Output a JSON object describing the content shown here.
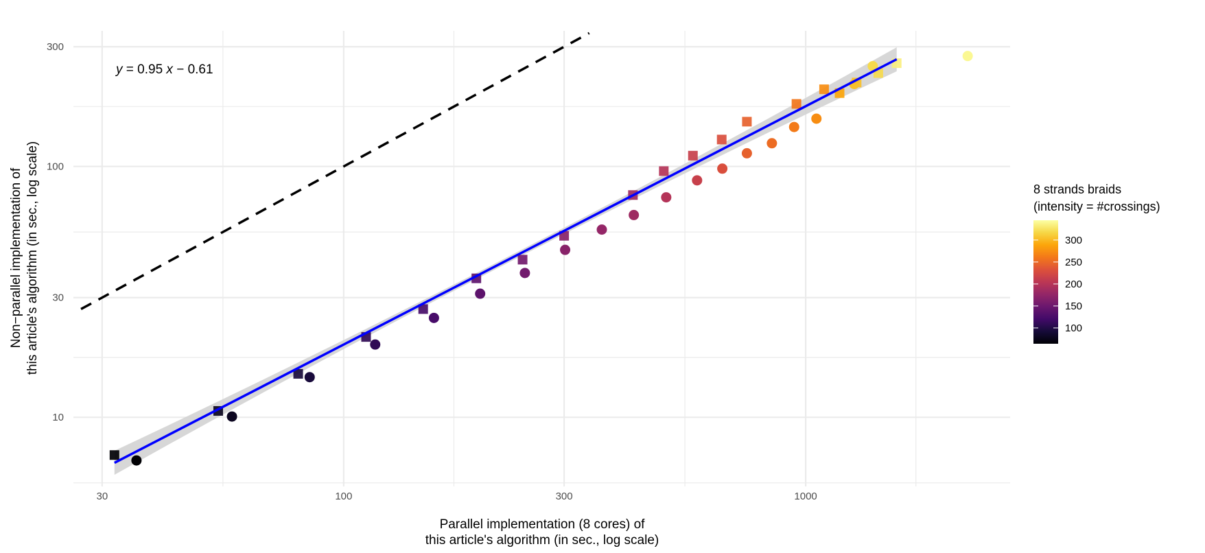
{
  "chart_data": {
    "type": "scatter",
    "title": "",
    "xlabel": [
      "Parallel implementation (8 cores) of",
      "this article's algorithm (in sec., log scale)"
    ],
    "ylabel": [
      "Non−parallel implementation of",
      "this article's algorithm (in sec., log scale)"
    ],
    "xscale": "log10",
    "yscale": "log10",
    "xlim": [
      26,
      2770
    ],
    "ylim": [
      5.3,
      347
    ],
    "xticks": [
      30,
      100,
      300,
      1000
    ],
    "xtick_labels": [
      "30",
      "100",
      "300",
      "1000"
    ],
    "yticks": [
      10,
      30,
      100,
      300
    ],
    "ytick_labels": [
      "10",
      "30",
      "100",
      "300"
    ],
    "grid": true,
    "annotation": {
      "y": "y",
      "eq": " = 0.95 ",
      "x": "x",
      "rest": " − 0.61"
    },
    "fit_line": {
      "slope": 0.95,
      "intercept": -0.61,
      "x_range": [
        31.9,
        1574
      ],
      "color": "#0000ff",
      "confidence_band": true,
      "band_color": "#d3d3d3"
    },
    "reference_line": {
      "type": "y = x",
      "style": "dashed",
      "color": "#000000",
      "x_range": [
        27,
        340
      ]
    },
    "color_legend": {
      "title": [
        "8 strands braids",
        "(intensity = #crossings)"
      ],
      "palette": "inferno",
      "limits": [
        64,
        345
      ],
      "ticks": [
        100,
        150,
        200,
        250,
        300
      ],
      "tick_labels": [
        "100",
        "150",
        "200",
        "250",
        "300"
      ],
      "placement": "right"
    },
    "series": [
      {
        "shape": "square",
        "points": [
          {
            "x": 31.9,
            "y": 7.07,
            "crossings": 64
          },
          {
            "x": 53.5,
            "y": 10.6,
            "crossings": 79
          },
          {
            "x": 79.7,
            "y": 14.9,
            "crossings": 94
          },
          {
            "x": 111.8,
            "y": 20.9,
            "crossings": 109
          },
          {
            "x": 148.6,
            "y": 27.0,
            "crossings": 124
          },
          {
            "x": 193.7,
            "y": 35.8,
            "crossings": 139
          },
          {
            "x": 243.9,
            "y": 42.5,
            "crossings": 154
          },
          {
            "x": 300,
            "y": 52.9,
            "crossings": 169
          },
          {
            "x": 422.7,
            "y": 76.9,
            "crossings": 184
          },
          {
            "x": 493,
            "y": 95.8,
            "crossings": 199
          },
          {
            "x": 570,
            "y": 110.4,
            "crossings": 214
          },
          {
            "x": 658,
            "y": 128,
            "crossings": 229
          },
          {
            "x": 746,
            "y": 150.8,
            "crossings": 244
          },
          {
            "x": 955,
            "y": 177.5,
            "crossings": 259
          },
          {
            "x": 1096,
            "y": 203,
            "crossings": 274
          },
          {
            "x": 1184,
            "y": 196,
            "crossings": 289
          },
          {
            "x": 1289,
            "y": 216,
            "crossings": 304
          },
          {
            "x": 1436,
            "y": 235.6,
            "crossings": 319
          },
          {
            "x": 1574,
            "y": 258,
            "crossings": 334
          }
        ]
      },
      {
        "shape": "circle",
        "points": [
          {
            "x": 35.6,
            "y": 6.73,
            "crossings": 64
          },
          {
            "x": 57.3,
            "y": 10.07,
            "crossings": 79
          },
          {
            "x": 84.4,
            "y": 14.45,
            "crossings": 94
          },
          {
            "x": 117,
            "y": 19.5,
            "crossings": 109
          },
          {
            "x": 156.8,
            "y": 24.9,
            "crossings": 124
          },
          {
            "x": 197.4,
            "y": 31.1,
            "crossings": 139
          },
          {
            "x": 246.7,
            "y": 37.6,
            "crossings": 154
          },
          {
            "x": 301.5,
            "y": 46.5,
            "crossings": 169
          },
          {
            "x": 362,
            "y": 56,
            "crossings": 177
          },
          {
            "x": 424.6,
            "y": 64,
            "crossings": 184
          },
          {
            "x": 499,
            "y": 75.3,
            "crossings": 199
          },
          {
            "x": 582,
            "y": 88,
            "crossings": 214
          },
          {
            "x": 660,
            "y": 98,
            "crossings": 229
          },
          {
            "x": 746,
            "y": 112.8,
            "crossings": 244
          },
          {
            "x": 845,
            "y": 123.7,
            "crossings": 252
          },
          {
            "x": 944,
            "y": 143.6,
            "crossings": 262
          },
          {
            "x": 1055,
            "y": 155,
            "crossings": 274
          },
          {
            "x": 1274,
            "y": 213,
            "crossings": 304
          },
          {
            "x": 1397,
            "y": 251,
            "crossings": 319
          },
          {
            "x": 2242,
            "y": 275.5,
            "crossings": 340
          }
        ]
      }
    ]
  }
}
